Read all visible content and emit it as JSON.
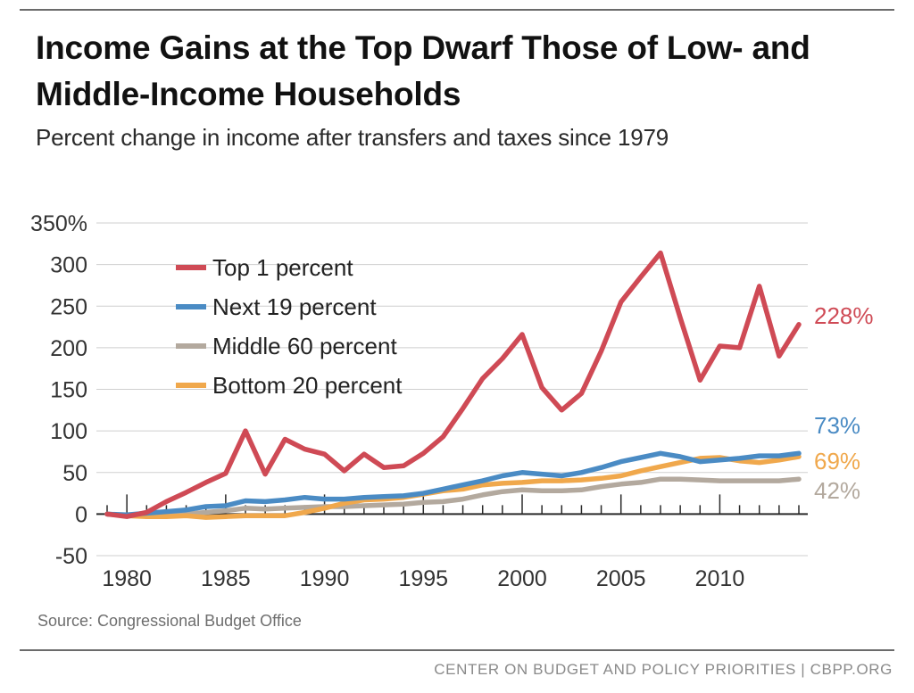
{
  "header": {
    "title": "Income Gains at the Top Dwarf Those of Low- and Middle-Income Households",
    "subtitle": "Percent change in income after transfers and taxes since 1979"
  },
  "source": "Source: Congressional Budget Office",
  "footer": "CENTER ON BUDGET AND POLICY PRIORITIES | CBPP.ORG",
  "chart_data": {
    "type": "line",
    "title": "Income Gains at the Top Dwarf Those of Low- and Middle-Income Households",
    "subtitle": "Percent change in income after transfers and taxes since 1979",
    "xlabel": "",
    "ylabel": "",
    "xlim": [
      1979,
      2014
    ],
    "ylim": [
      -50,
      350
    ],
    "y_ticks": [
      -50,
      0,
      50,
      100,
      150,
      200,
      250,
      300,
      350
    ],
    "y_tick_labels": [
      "-50",
      "0",
      "50",
      "100",
      "150",
      "200",
      "250",
      "300",
      "350%"
    ],
    "x_tick_labels": [
      "1980",
      "1985",
      "1990",
      "1995",
      "2000",
      "2005",
      "2010"
    ],
    "x_ticks": [
      1980,
      1985,
      1990,
      1995,
      2000,
      2005,
      2010
    ],
    "grid": "horizontal",
    "legend_position": "top-left",
    "x": [
      1979,
      1980,
      1981,
      1982,
      1983,
      1984,
      1985,
      1986,
      1987,
      1988,
      1989,
      1990,
      1991,
      1992,
      1993,
      1994,
      1995,
      1996,
      1997,
      1998,
      1999,
      2000,
      2001,
      2002,
      2003,
      2004,
      2005,
      2006,
      2007,
      2008,
      2009,
      2010,
      2011,
      2012,
      2013,
      2014
    ],
    "series": [
      {
        "name": "Top 1 percent",
        "color": "#cf4a55",
        "end_label": "228%",
        "values": [
          0,
          -3,
          2,
          15,
          26,
          38,
          49,
          100,
          48,
          90,
          78,
          72,
          52,
          72,
          56,
          58,
          73,
          93,
          127,
          163,
          187,
          216,
          152,
          125,
          145,
          196,
          255,
          285,
          314,
          236,
          161,
          202,
          200,
          274,
          190,
          228
        ]
      },
      {
        "name": "Next 19 percent",
        "color": "#4a8bc4",
        "end_label": "73%",
        "values": [
          0,
          -1,
          1,
          3,
          5,
          9,
          10,
          16,
          15,
          17,
          20,
          18,
          18,
          20,
          21,
          22,
          25,
          30,
          35,
          40,
          46,
          50,
          48,
          46,
          50,
          56,
          63,
          68,
          73,
          69,
          63,
          65,
          67,
          70,
          70,
          73
        ]
      },
      {
        "name": "Middle 60 percent",
        "color": "#b3a99e",
        "end_label": "42%",
        "values": [
          0,
          -2,
          -2,
          -1,
          0,
          2,
          4,
          7,
          6,
          7,
          8,
          9,
          9,
          10,
          11,
          12,
          14,
          15,
          18,
          23,
          27,
          29,
          28,
          28,
          29,
          33,
          36,
          38,
          42,
          42,
          41,
          40,
          40,
          40,
          40,
          42
        ]
      },
      {
        "name": "Bottom 20 percent",
        "color": "#f0a84c",
        "end_label": "69%",
        "values": [
          0,
          -2,
          -3,
          -3,
          -2,
          -4,
          -3,
          -2,
          -2,
          -2,
          2,
          7,
          13,
          17,
          18,
          20,
          24,
          28,
          30,
          35,
          37,
          38,
          40,
          40,
          41,
          43,
          46,
          52,
          57,
          62,
          67,
          68,
          64,
          62,
          65,
          69
        ]
      }
    ]
  }
}
